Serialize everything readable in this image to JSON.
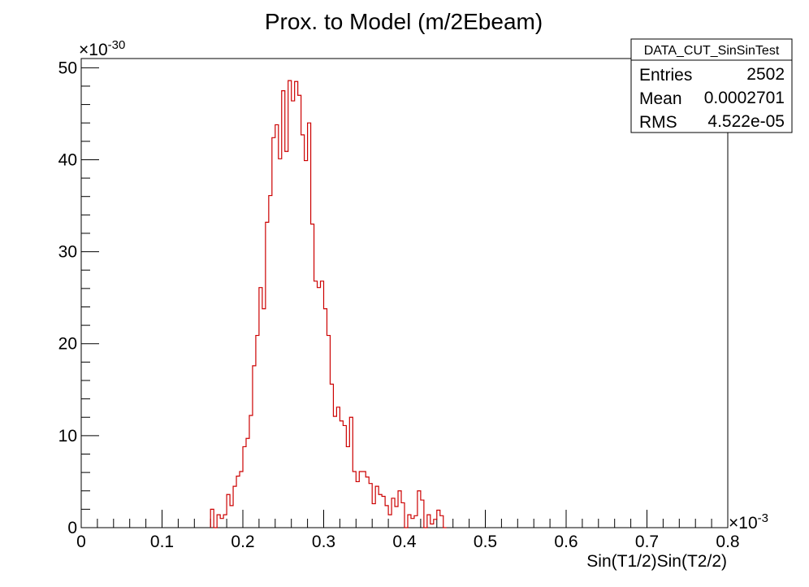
{
  "chart_data": {
    "type": "histogram",
    "title": "Prox. to Model (m/2Ebeam)",
    "xlabel": "Sin(T1/2)Sin(T2/2)",
    "ylabel": "",
    "x_multiplier": "×10",
    "x_exponent": "-3",
    "y_multiplier": "×10",
    "y_exponent": "-30",
    "xlim": [
      0,
      0.8
    ],
    "ylim": [
      0,
      51
    ],
    "x_ticks": [
      0,
      0.1,
      0.2,
      0.3,
      0.4,
      0.5,
      0.6,
      0.7,
      0.8
    ],
    "x_tick_labels": [
      "0",
      "0.1",
      "0.2",
      "0.3",
      "0.4",
      "0.5",
      "0.6",
      "0.7",
      "0.8"
    ],
    "y_ticks": [
      0,
      10,
      20,
      30,
      40,
      50
    ],
    "y_tick_labels": [
      "0",
      "10",
      "20",
      "30",
      "40",
      "50"
    ],
    "bin_width": 0.004,
    "line_color": "#cc0000",
    "grid": false,
    "bins": [
      [
        0.16,
        2.0
      ],
      [
        0.164,
        0.0
      ],
      [
        0.168,
        1.4
      ],
      [
        0.172,
        1.0
      ],
      [
        0.176,
        1.4
      ],
      [
        0.18,
        3.6
      ],
      [
        0.184,
        2.4
      ],
      [
        0.188,
        4.5
      ],
      [
        0.192,
        5.6
      ],
      [
        0.196,
        6.1
      ],
      [
        0.2,
        8.8
      ],
      [
        0.204,
        9.7
      ],
      [
        0.208,
        12.2
      ],
      [
        0.212,
        17.6
      ],
      [
        0.216,
        20.9
      ],
      [
        0.22,
        26.1
      ],
      [
        0.224,
        23.8
      ],
      [
        0.228,
        33.2
      ],
      [
        0.232,
        36.1
      ],
      [
        0.236,
        42.4
      ],
      [
        0.24,
        43.8
      ],
      [
        0.244,
        40.1
      ],
      [
        0.248,
        47.5
      ],
      [
        0.252,
        40.9
      ],
      [
        0.256,
        48.6
      ],
      [
        0.26,
        46.4
      ],
      [
        0.264,
        48.5
      ],
      [
        0.268,
        47.0
      ],
      [
        0.272,
        42.7
      ],
      [
        0.276,
        39.9
      ],
      [
        0.28,
        44.0
      ],
      [
        0.284,
        33.0
      ],
      [
        0.288,
        26.8
      ],
      [
        0.292,
        26.1
      ],
      [
        0.296,
        26.8
      ],
      [
        0.3,
        23.8
      ],
      [
        0.304,
        20.9
      ],
      [
        0.308,
        15.6
      ],
      [
        0.312,
        12.1
      ],
      [
        0.316,
        13.1
      ],
      [
        0.32,
        11.6
      ],
      [
        0.324,
        11.1
      ],
      [
        0.328,
        8.8
      ],
      [
        0.332,
        12.0
      ],
      [
        0.336,
        6.1
      ],
      [
        0.34,
        5.0
      ],
      [
        0.344,
        6.1
      ],
      [
        0.348,
        6.1
      ],
      [
        0.352,
        5.5
      ],
      [
        0.356,
        4.8
      ],
      [
        0.36,
        2.6
      ],
      [
        0.364,
        4.5
      ],
      [
        0.368,
        3.6
      ],
      [
        0.372,
        3.4
      ],
      [
        0.376,
        2.4
      ],
      [
        0.38,
        1.4
      ],
      [
        0.384,
        3.2
      ],
      [
        0.388,
        2.3
      ],
      [
        0.392,
        4.0
      ],
      [
        0.396,
        2.7
      ],
      [
        0.4,
        0.0
      ],
      [
        0.404,
        1.4
      ],
      [
        0.408,
        1.0
      ],
      [
        0.412,
        1.3
      ],
      [
        0.416,
        4.0
      ],
      [
        0.42,
        3.0
      ],
      [
        0.424,
        0.0
      ],
      [
        0.428,
        1.4
      ],
      [
        0.432,
        0.4
      ],
      [
        0.436,
        0.9
      ],
      [
        0.44,
        1.9
      ],
      [
        0.444,
        1.3
      ],
      [
        0.448,
        0.0
      ]
    ],
    "stats_box": {
      "title": "DATA_CUT_SinSinTest",
      "rows": [
        {
          "label": "Entries",
          "value": "2502"
        },
        {
          "label": "Mean",
          "value": "0.0002701"
        },
        {
          "label": "RMS",
          "value": "4.522e-05"
        }
      ]
    }
  }
}
